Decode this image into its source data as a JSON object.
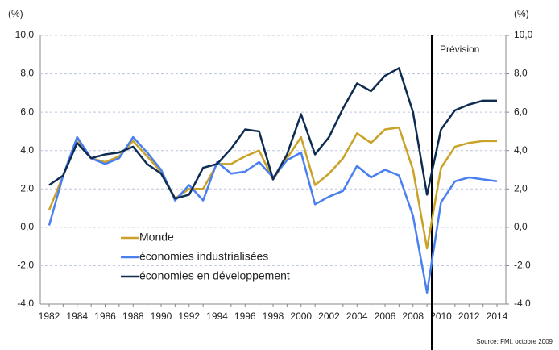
{
  "chart_data": {
    "type": "line",
    "y_unit": "(%)",
    "y2_unit": "(%)",
    "annotation": "Prévision",
    "source": "Source: FMI, octobre 2009",
    "categories": [
      "1982",
      null,
      "1984",
      null,
      "1986",
      null,
      "1988",
      null,
      "1990",
      null,
      "1992",
      null,
      "1994",
      null,
      "1996",
      null,
      "1998",
      null,
      "2000",
      null,
      "2002",
      null,
      "2004",
      null,
      "2006",
      null,
      "2008",
      null,
      "2010",
      null,
      "2012",
      null,
      "2014"
    ],
    "series": [
      {
        "name": "Monde",
        "color": "#c9a227",
        "values": [
          0.9,
          2.7,
          4.6,
          3.6,
          3.4,
          3.7,
          4.5,
          3.7,
          2.9,
          1.5,
          2.0,
          2.0,
          3.3,
          3.3,
          3.7,
          4.0,
          2.5,
          3.6,
          4.7,
          2.2,
          2.8,
          3.6,
          4.9,
          4.4,
          5.1,
          5.2,
          3.0,
          -1.1,
          3.1,
          4.2,
          4.4,
          4.5,
          4.5
        ]
      },
      {
        "name": "économies industrialisées",
        "color": "#4a7ff0",
        "values": [
          0.1,
          2.7,
          4.7,
          3.6,
          3.3,
          3.6,
          4.7,
          3.9,
          3.0,
          1.4,
          2.2,
          1.4,
          3.4,
          2.8,
          2.9,
          3.4,
          2.6,
          3.5,
          3.9,
          1.2,
          1.6,
          1.9,
          3.2,
          2.6,
          3.0,
          2.7,
          0.6,
          -3.4,
          1.3,
          2.4,
          2.6,
          2.5,
          2.4
        ]
      },
      {
        "name": "économies en développement",
        "color": "#0e2c52",
        "values": [
          2.2,
          2.7,
          4.4,
          3.6,
          3.8,
          3.9,
          4.2,
          3.3,
          2.8,
          1.5,
          1.7,
          3.1,
          3.3,
          4.1,
          5.1,
          5.0,
          2.5,
          3.8,
          5.9,
          3.8,
          4.7,
          6.2,
          7.5,
          7.1,
          7.9,
          8.3,
          6.0,
          1.7,
          5.1,
          6.1,
          6.4,
          6.6,
          6.6
        ]
      }
    ],
    "ylim": [
      -4,
      10
    ],
    "yticks": [
      {
        "value": 10,
        "label": "10,0"
      },
      {
        "value": 8,
        "label": "8,0"
      },
      {
        "value": 6,
        "label": "6,0"
      },
      {
        "value": 4,
        "label": "4,0"
      },
      {
        "value": 2,
        "label": "2,0"
      },
      {
        "value": 0,
        "label": "0,0"
      },
      {
        "value": -2,
        "label": "-2,0"
      },
      {
        "value": -4,
        "label": "-4,0"
      }
    ],
    "y2lim": [
      -4,
      10
    ],
    "y2ticks": [
      {
        "value": 10,
        "label": "10,0"
      },
      {
        "value": 8,
        "label": "8,0"
      },
      {
        "value": 6,
        "label": "6,0"
      },
      {
        "value": 4,
        "label": "4,0"
      },
      {
        "value": 2,
        "label": "2,0"
      },
      {
        "value": 0,
        "label": "0,0"
      },
      {
        "value": -2,
        "label": "-2,0"
      },
      {
        "value": -4,
        "label": "-4,0"
      }
    ],
    "grid": true
  }
}
